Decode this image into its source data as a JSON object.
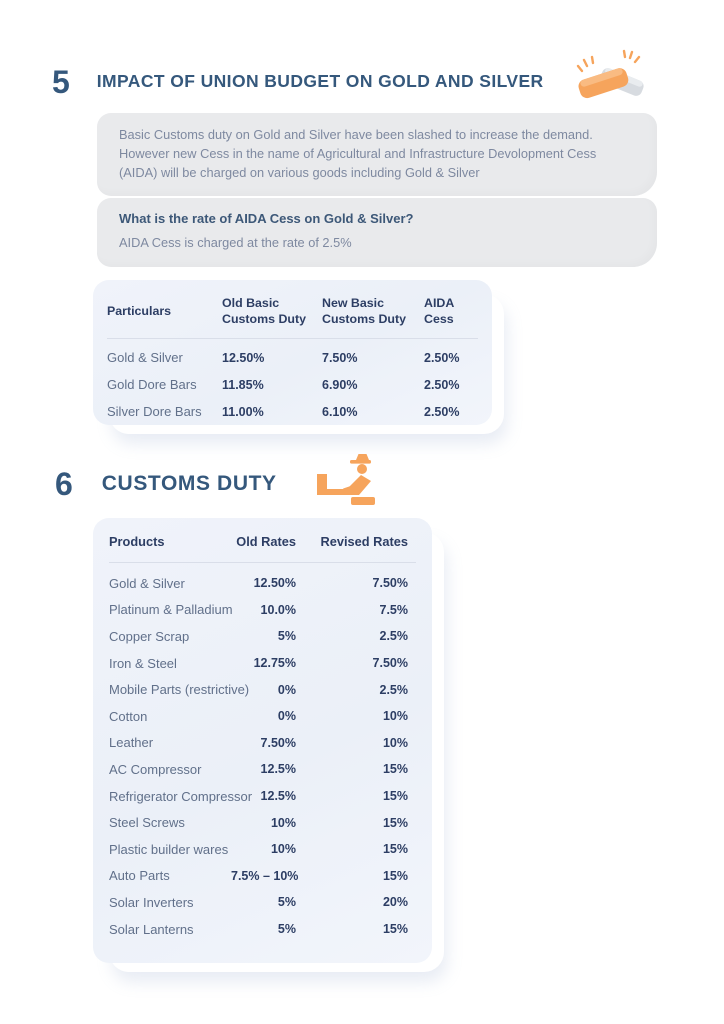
{
  "colors": {
    "heading_navy": "#35587C",
    "table_navy": "#2D3E64",
    "row_label_grey": "#61708A",
    "body_text": "#7E89A0",
    "note_box_bg": "#E9EAEC",
    "card_bg": "#EDF1F9",
    "accent_orange": "#F6A45C",
    "divider": "#D9DEE9"
  },
  "section5": {
    "number": "5",
    "title": "IMPACT OF UNION BUDGET ON GOLD AND SILVER",
    "icon": "gold-silver-bars-icon",
    "intro": "Basic Customs duty on Gold and Silver have been slashed to increase the demand. However new Cess in the name of Agricultural and Infrastructure Devolopment Cess (AIDA) will be charged on various goods including Gold & Silver",
    "question": "What is the rate of AIDA Cess on Gold & Silver?",
    "answer": "AIDA Cess is charged at the rate of 2.5%",
    "table": {
      "headers": [
        "Particulars",
        "Old Basic Customs Duty",
        "New Basic Customs Duty",
        "AIDA Cess"
      ],
      "rows": [
        [
          "Gold & Silver",
          "12.50%",
          "7.50%",
          "2.50%"
        ],
        [
          "Gold Dore Bars",
          "11.85%",
          "6.90%",
          "2.50%"
        ],
        [
          "Silver Dore Bars",
          "11.00%",
          "6.10%",
          "2.50%"
        ]
      ]
    }
  },
  "section6": {
    "number": "6",
    "title": "CUSTOMS DUTY",
    "icon": "customs-officer-icon",
    "table": {
      "headers": [
        "Products",
        "Old Rates",
        "Revised Rates"
      ],
      "rows": [
        [
          "Gold & Silver",
          "12.50%",
          "7.50%"
        ],
        [
          "Platinum & Palladium",
          "10.0%",
          "7.5%"
        ],
        [
          "Copper Scrap",
          "5%",
          "2.5%"
        ],
        [
          "Iron & Steel",
          "12.75%",
          "7.50%"
        ],
        [
          "Mobile Parts (restrictive)",
          "0%",
          "2.5%"
        ],
        [
          "Cotton",
          "0%",
          "10%"
        ],
        [
          "Leather",
          "7.50%",
          "10%"
        ],
        [
          "AC Compressor",
          "12.5%",
          "15%"
        ],
        [
          "Refrigerator Compressor",
          "12.5%",
          "15%"
        ],
        [
          "Steel Screws",
          "10%",
          "15%"
        ],
        [
          "Plastic builder wares",
          "10%",
          "15%"
        ],
        [
          "Auto Parts",
          "7.5% – 10%",
          "15%"
        ],
        [
          "Solar Inverters",
          "5%",
          "20%"
        ],
        [
          "Solar Lanterns",
          "5%",
          "15%"
        ]
      ]
    }
  }
}
